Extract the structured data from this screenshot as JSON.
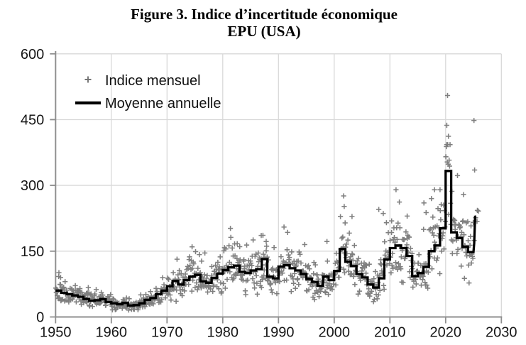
{
  "figure": {
    "title_line1": "Figure 3. Indice d’incertitude économique",
    "title_line2": "EPU (USA)"
  },
  "legend": {
    "items": [
      {
        "marker": "plus-marker",
        "label": "Indice mensuel"
      },
      {
        "marker": "line-marker",
        "label": "Moyenne annuelle"
      }
    ]
  },
  "colors": {
    "scatter": "#747474",
    "annual_line": "#000000",
    "axis": "#8f8f8f",
    "gridline": "#d9d9d9",
    "text": "#161616",
    "background": "#ffffff"
  },
  "chart_data": {
    "type": "scatter",
    "title": "Figure 3. Indice d'incertitude économique — EPU (USA)",
    "xlabel": "",
    "ylabel": "",
    "xlim": [
      1950,
      2030
    ],
    "ylim": [
      0,
      600
    ],
    "x_ticks": [
      1950,
      1960,
      1970,
      1980,
      1990,
      2000,
      2010,
      2020,
      2030
    ],
    "y_ticks": [
      0,
      150,
      300,
      450,
      600
    ],
    "grid": "both-light",
    "legend_position": "top-left-inside",
    "series": [
      {
        "name": "Moyenne annuelle",
        "style": "step-line",
        "years": [
          1950,
          1951,
          1952,
          1953,
          1954,
          1955,
          1956,
          1957,
          1958,
          1959,
          1960,
          1961,
          1962,
          1963,
          1964,
          1965,
          1966,
          1967,
          1968,
          1969,
          1970,
          1971,
          1972,
          1973,
          1974,
          1975,
          1976,
          1977,
          1978,
          1979,
          1980,
          1981,
          1982,
          1983,
          1984,
          1985,
          1986,
          1987,
          1988,
          1989,
          1990,
          1991,
          1992,
          1993,
          1994,
          1995,
          1996,
          1997,
          1998,
          1999,
          2000,
          2001,
          2002,
          2003,
          2004,
          2005,
          2006,
          2007,
          2008,
          2009,
          2010,
          2011,
          2012,
          2013,
          2014,
          2015,
          2016,
          2017,
          2018,
          2019,
          2020,
          2021,
          2022,
          2023,
          2024,
          2025
        ],
        "values": [
          60,
          55,
          52,
          49,
          46,
          41,
          37,
          38,
          41,
          34,
          31,
          29,
          32,
          26,
          27,
          31,
          39,
          43,
          52,
          60,
          70,
          82,
          74,
          84,
          92,
          96,
          81,
          78,
          89,
          99,
          107,
          113,
          117,
          103,
          100,
          106,
          109,
          132,
          92,
          88,
          115,
          118,
          111,
          106,
          98,
          87,
          80,
          71,
          92,
          84,
          105,
          155,
          126,
          116,
          98,
          90,
          74,
          67,
          88,
          131,
          157,
          163,
          157,
          139,
          93,
          100,
          114,
          150,
          163,
          202,
          333,
          193,
          180,
          160,
          148,
          231
        ],
        "last_year_partial_tail": [
          [
            2025.0,
            148
          ],
          [
            2025.12,
            168
          ],
          [
            2025.3,
            231
          ]
        ]
      },
      {
        "name": "Indice mensuel",
        "style": "plus-scatter",
        "note": "Monthly cloud dispersed around the annual mean; distinctive extreme months listed below were read directly from the figure.",
        "outliers": [
          [
            1950.6,
            101
          ],
          [
            1950.9,
            90
          ],
          [
            1974.5,
            160
          ],
          [
            1980.3,
            158
          ],
          [
            1982.6,
            167
          ],
          [
            1986.9,
            186
          ],
          [
            1987.8,
            172
          ],
          [
            1991.0,
            205
          ],
          [
            1998.7,
            172
          ],
          [
            2001.7,
            276
          ],
          [
            2001.8,
            252
          ],
          [
            2003.2,
            229
          ],
          [
            2008.0,
            245
          ],
          [
            2008.8,
            236
          ],
          [
            2010.3,
            219
          ],
          [
            2011.1,
            290
          ],
          [
            2011.7,
            262
          ],
          [
            2013.1,
            230
          ],
          [
            2016.1,
            260
          ],
          [
            2016.5,
            238
          ],
          [
            2018.0,
            290
          ],
          [
            2019.0,
            290
          ],
          [
            2020.2,
            437
          ],
          [
            2020.35,
            505
          ],
          [
            2020.5,
            412
          ],
          [
            2025.08,
            448
          ],
          [
            2025.2,
            335
          ],
          [
            2025.7,
            243
          ]
        ],
        "synth": {
          "seed": 20,
          "rel_sd": 0.21,
          "months_last_year": 4
        }
      }
    ]
  }
}
